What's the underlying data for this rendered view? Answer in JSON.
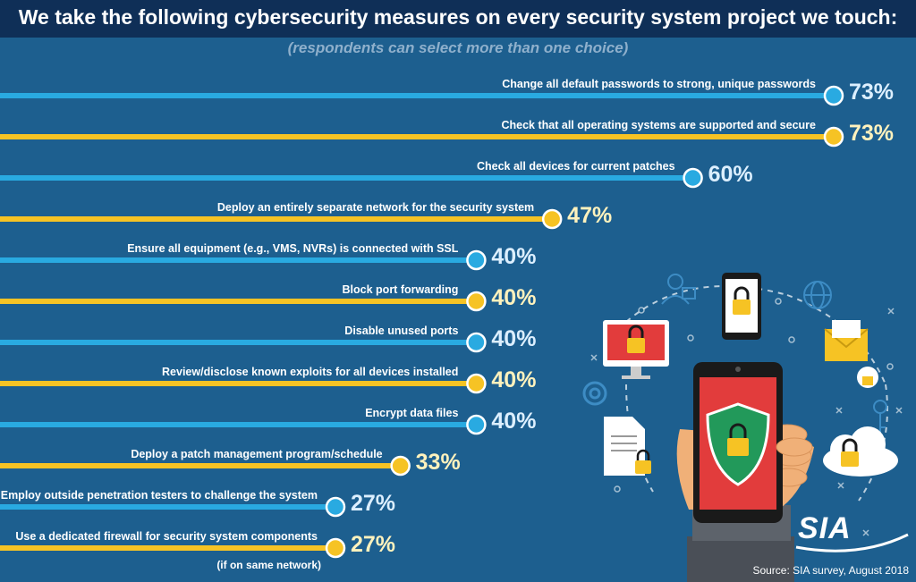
{
  "title": "We take the following cybersecurity measures on every security system project we touch:",
  "subtitle": "(respondents can select more than one choice)",
  "source": "Source: SIA survey, August 2018",
  "logo_text": "SIA",
  "colors": {
    "background": "#1d5f8f",
    "title_bar": "#0f2f57",
    "blue": "#29aae1",
    "yellow": "#f6c324",
    "label": "#ffffff",
    "pct_blue": "#dcefff",
    "pct_yellow": "#fff2bd",
    "shield": "#22995a",
    "phone_screen": "#e23c3c"
  },
  "chart_data": {
    "type": "bar",
    "orientation": "horizontal",
    "categories": [
      "Change all default passwords to strong, unique passwords",
      "Check that all operating systems are supported and secure",
      "Check all devices for current patches",
      "Deploy an entirely separate network for the security system",
      "Ensure all equipment (e.g., VMS, NVRs) is connected with SSL",
      "Block port forwarding",
      "Disable unused ports",
      "Review/disclose known exploits for all devices installed",
      "Encrypt data files",
      "Deploy a patch management program/schedule",
      "Employ outside penetration testers to challenge the system",
      "Use a dedicated firewall for security system components"
    ],
    "notes": [
      "",
      "",
      "",
      "",
      "",
      "",
      "",
      "",
      "",
      "",
      "",
      "(if on same network)"
    ],
    "values": [
      73,
      73,
      60,
      47,
      40,
      40,
      40,
      40,
      40,
      33,
      27,
      27
    ],
    "value_labels": [
      "73%",
      "73%",
      "60%",
      "47%",
      "40%",
      "40%",
      "40%",
      "40%",
      "40%",
      "33%",
      "27%",
      "27%"
    ],
    "bar_colors": [
      "blue",
      "yellow",
      "blue",
      "yellow",
      "blue",
      "yellow",
      "blue",
      "yellow",
      "blue",
      "yellow",
      "blue",
      "yellow"
    ],
    "title": "We take the following cybersecurity measures on every security system project we touch:",
    "xlabel": "",
    "ylabel": "",
    "xlim": [
      0,
      73
    ],
    "grid": false,
    "legend": "none"
  },
  "illustration": {
    "icons": [
      "user-lock-icon",
      "smartphone-lock-icon",
      "globe-icon",
      "monitor-lock-icon",
      "email-lock-icon",
      "gear-icon",
      "document-lock-icon",
      "key-icon",
      "cloud-lock-icon",
      "shield-lock-icon",
      "hand-holding-phone"
    ]
  }
}
